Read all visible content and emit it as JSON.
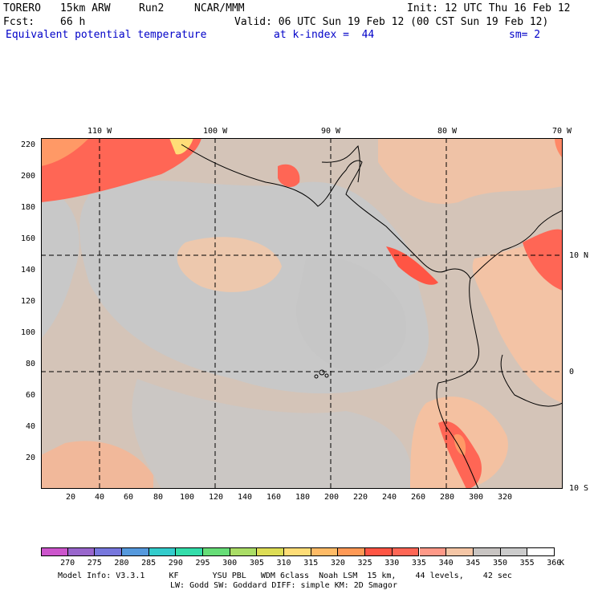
{
  "header": {
    "model": "TORERO",
    "resolution": "15km ARW",
    "run": "Run2",
    "org": "NCAR/MMM",
    "init": "Init: 12 UTC Thu 16 Feb 12",
    "fcst_label": "Fcst:",
    "fcst_value": "66 h",
    "valid": "Valid: 06 UTC Sun 19 Feb 12 (00 CST Sun 19 Feb 12)",
    "field": "Equivalent potential temperature",
    "level": "at k-index =  44",
    "smoothing": "sm= 2"
  },
  "map": {
    "top_lon_labels": [
      "110 W",
      "100 W",
      "90 W",
      "80 W",
      "70 W"
    ],
    "right_lat_labels": [
      "10 N",
      "0",
      "10 S"
    ],
    "y_grid_labels": [
      "220",
      "200",
      "180",
      "160",
      "140",
      "120",
      "100",
      "80",
      "60",
      "40",
      "20"
    ],
    "x_grid_labels": [
      "20",
      "40",
      "60",
      "80",
      "100",
      "120",
      "140",
      "160",
      "180",
      "200",
      "220",
      "240",
      "260",
      "280",
      "300",
      "320"
    ]
  },
  "colorbar": {
    "labels": [
      "270",
      "275",
      "280",
      "285",
      "290",
      "295",
      "300",
      "305",
      "310",
      "315",
      "320",
      "325",
      "330",
      "335",
      "340",
      "345",
      "350",
      "355",
      "360",
      "K"
    ],
    "colors": [
      "#cc55cc",
      "#9966cc",
      "#7777dd",
      "#5599dd",
      "#33cccc",
      "#33ddaa",
      "#66dd77",
      "#aadd66",
      "#dddd55",
      "#ffdd77",
      "#ffbb66",
      "#ff9955",
      "#ff5544",
      "#ff6655",
      "#ff9988",
      "#f5c6a6",
      "#c8c4c2",
      "#cccccc",
      "#ffffff"
    ]
  },
  "footer": {
    "line1": "Model Info: V3.3.1     KF       YSU PBL   WDM 6class  Noah LSM  15 km,    44 levels,    42 sec",
    "line2": "LW: Godd SW: Goddard DIFF: simple KM: 2D Smagor"
  }
}
